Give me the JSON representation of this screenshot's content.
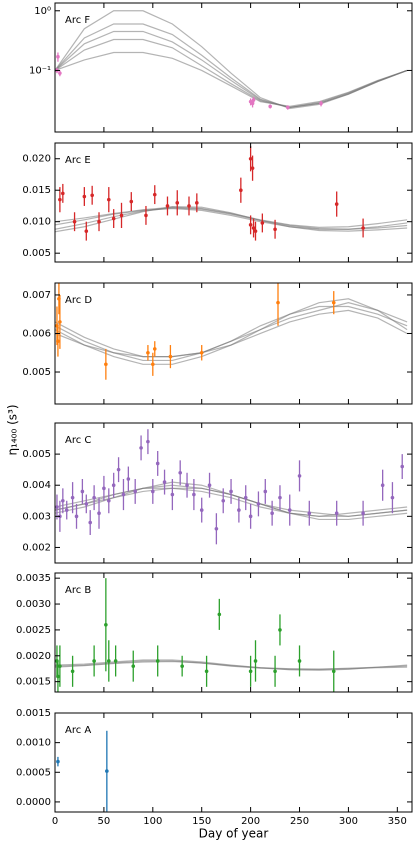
{
  "ylabel": "η₁₄₀₀ (s³)",
  "chart_data": [
    {
      "type": "line",
      "title": "Arc F",
      "yscale": "log",
      "ylim": [
        0.0093,
        1.35
      ],
      "yticks": [
        {
          "value": 1,
          "label": "10⁰"
        },
        {
          "value": 0.1,
          "label": "10⁻¹"
        }
      ],
      "x": [
        0,
        30,
        60,
        90,
        120,
        150,
        180,
        210,
        240,
        270,
        300,
        330,
        360
      ],
      "series": [
        {
          "color": "#777777",
          "values": [
            0.1,
            0.5,
            1.0,
            1.0,
            0.6,
            0.25,
            0.09,
            0.035,
            0.023,
            0.027,
            0.04,
            0.065,
            0.1
          ]
        },
        {
          "color": "#777777",
          "values": [
            0.1,
            0.35,
            0.6,
            0.6,
            0.4,
            0.18,
            0.075,
            0.033,
            0.024,
            0.028,
            0.04,
            0.065,
            0.1
          ]
        },
        {
          "color": "#777777",
          "values": [
            0.1,
            0.28,
            0.45,
            0.45,
            0.3,
            0.15,
            0.068,
            0.032,
            0.024,
            0.028,
            0.041,
            0.066,
            0.1
          ]
        },
        {
          "color": "#777777",
          "values": [
            0.1,
            0.22,
            0.33,
            0.33,
            0.24,
            0.12,
            0.06,
            0.031,
            0.024,
            0.029,
            0.042,
            0.067,
            0.1
          ]
        },
        {
          "color": "#777777",
          "values": [
            0.1,
            0.15,
            0.2,
            0.2,
            0.16,
            0.1,
            0.055,
            0.03,
            0.025,
            0.03,
            0.043,
            0.068,
            0.1
          ]
        }
      ],
      "points": {
        "color": "#e377c2",
        "x": [
          2,
          3,
          5,
          200,
          202,
          203,
          220,
          238,
          272
        ],
        "values": [
          0.1,
          0.17,
          0.09,
          0.03,
          0.028,
          0.032,
          0.025,
          0.024,
          0.028
        ],
        "errors": [
          0.01,
          0.03,
          0.01,
          0.004,
          0.004,
          0.004,
          0.002,
          0.002,
          0.003
        ]
      }
    },
    {
      "type": "line",
      "title": "Arc E",
      "ylim": [
        0.0036,
        0.0225
      ],
      "yticks": [
        0.005,
        {
          "value": 0.01,
          "label": "0.010"
        },
        0.015,
        {
          "value": 0.02,
          "label": "0.020"
        }
      ],
      "x": [
        0,
        30,
        60,
        90,
        120,
        150,
        180,
        210,
        240,
        270,
        300,
        330,
        360
      ],
      "series": [
        {
          "color": "#777777",
          "values": [
            0.0095,
            0.0103,
            0.0112,
            0.0118,
            0.0121,
            0.0118,
            0.011,
            0.01,
            0.0092,
            0.0088,
            0.0088,
            0.0092,
            0.0098
          ]
        },
        {
          "color": "#777777",
          "values": [
            0.0088,
            0.0097,
            0.0108,
            0.0117,
            0.0122,
            0.012,
            0.0112,
            0.0102,
            0.0094,
            0.0089,
            0.0088,
            0.009,
            0.0094
          ]
        },
        {
          "color": "#777777",
          "values": [
            0.01,
            0.0106,
            0.0113,
            0.0119,
            0.0123,
            0.0121,
            0.0113,
            0.0103,
            0.0095,
            0.0091,
            0.0092,
            0.0097,
            0.0103
          ]
        },
        {
          "color": "#777777",
          "values": [
            0.0084,
            0.0092,
            0.0104,
            0.0116,
            0.0124,
            0.0123,
            0.0114,
            0.0102,
            0.0092,
            0.0086,
            0.0085,
            0.0087,
            0.009
          ]
        }
      ],
      "points": {
        "color": "#d62728",
        "x": [
          5,
          8,
          20,
          30,
          32,
          38,
          45,
          55,
          60,
          68,
          78,
          93,
          102,
          115,
          125,
          137,
          145,
          190,
          200,
          202,
          200,
          203,
          205,
          212,
          225,
          288,
          315
        ],
        "values": [
          0.0135,
          0.0145,
          0.01,
          0.014,
          0.0085,
          0.0142,
          0.01,
          0.0135,
          0.0105,
          0.011,
          0.0132,
          0.011,
          0.0143,
          0.0125,
          0.013,
          0.0125,
          0.013,
          0.015,
          0.02,
          0.0185,
          0.0095,
          0.009,
          0.0085,
          0.0098,
          0.0088,
          0.0128,
          0.009
        ],
        "errors": [
          0.002,
          0.0015,
          0.0015,
          0.0015,
          0.0015,
          0.0015,
          0.0015,
          0.002,
          0.0015,
          0.002,
          0.0015,
          0.0015,
          0.0015,
          0.0015,
          0.002,
          0.0015,
          0.0015,
          0.002,
          0.002,
          0.002,
          0.0015,
          0.0015,
          0.0015,
          0.0015,
          0.0015,
          0.002,
          0.0015
        ]
      }
    },
    {
      "type": "line",
      "title": "Arc D",
      "ylim": [
        0.00417,
        0.00731
      ],
      "yticks": [
        0.005,
        0.006,
        0.007
      ],
      "x": [
        0,
        30,
        60,
        90,
        120,
        150,
        180,
        210,
        240,
        270,
        300,
        330,
        360
      ],
      "series": [
        {
          "color": "#777777",
          "values": [
            0.0062,
            0.0058,
            0.0055,
            0.0053,
            0.0053,
            0.0055,
            0.0058,
            0.0062,
            0.0065,
            0.0067,
            0.0067,
            0.0065,
            0.0062
          ]
        },
        {
          "color": "#777777",
          "values": [
            0.0063,
            0.0059,
            0.0056,
            0.0054,
            0.0054,
            0.0055,
            0.0058,
            0.0061,
            0.0064,
            0.0066,
            0.0068,
            0.0066,
            0.0063
          ]
        },
        {
          "color": "#777777",
          "values": [
            0.0061,
            0.0057,
            0.0054,
            0.0052,
            0.0052,
            0.0054,
            0.0057,
            0.0061,
            0.0065,
            0.0068,
            0.0069,
            0.0066,
            0.0061
          ]
        },
        {
          "color": "#777777",
          "values": [
            0.006,
            0.0057,
            0.0055,
            0.0054,
            0.0054,
            0.0055,
            0.0057,
            0.006,
            0.0063,
            0.0065,
            0.0066,
            0.0064,
            0.006
          ]
        }
      ],
      "points": {
        "color": "#ff7f0e",
        "x": [
          2,
          3,
          5,
          4,
          52,
          95,
          100,
          102,
          118,
          150,
          228,
          285
        ],
        "values": [
          0.0062,
          0.0058,
          0.0063,
          0.0069,
          0.0052,
          0.0055,
          0.0052,
          0.0056,
          0.0054,
          0.0055,
          0.0068,
          0.0068
        ],
        "errors": [
          0.0005,
          0.0004,
          0.0007,
          0.0004,
          0.0004,
          0.0002,
          0.0003,
          0.0002,
          0.0003,
          0.0002,
          0.0006,
          0.0003
        ]
      }
    },
    {
      "type": "line",
      "title": "Arc C",
      "ylim": [
        0.0015,
        0.006
      ],
      "yticks": [
        0.002,
        0.003,
        0.004,
        0.005
      ],
      "x": [
        0,
        30,
        60,
        90,
        120,
        150,
        180,
        210,
        240,
        270,
        300,
        330,
        360
      ],
      "series": [
        {
          "color": "#777777",
          "values": [
            0.0032,
            0.0034,
            0.0037,
            0.0039,
            0.004,
            0.0039,
            0.0037,
            0.0034,
            0.0031,
            0.003,
            0.003,
            0.0031,
            0.0032
          ]
        },
        {
          "color": "#777777",
          "values": [
            0.0033,
            0.0035,
            0.0037,
            0.0039,
            0.0039,
            0.0038,
            0.0036,
            0.0033,
            0.0031,
            0.003,
            0.0031,
            0.0032,
            0.0033
          ]
        },
        {
          "color": "#777777",
          "values": [
            0.0031,
            0.0033,
            0.0036,
            0.0039,
            0.0041,
            0.004,
            0.0037,
            0.0034,
            0.0031,
            0.0029,
            0.0029,
            0.003,
            0.0031
          ]
        },
        {
          "color": "#777777",
          "values": [
            0.0032,
            0.0034,
            0.0036,
            0.0038,
            0.0039,
            0.0039,
            0.0037,
            0.0034,
            0.0032,
            0.0031,
            0.003,
            0.0031,
            0.0032
          ]
        }
      ],
      "points": {
        "color": "#9467bd",
        "x": [
          2,
          5,
          8,
          12,
          18,
          22,
          28,
          32,
          36,
          40,
          45,
          50,
          55,
          60,
          65,
          70,
          75,
          82,
          88,
          95,
          100,
          105,
          112,
          120,
          128,
          135,
          142,
          150,
          158,
          165,
          172,
          180,
          188,
          195,
          200,
          208,
          215,
          222,
          230,
          240,
          250,
          260,
          288,
          315,
          335,
          345,
          355
        ],
        "values": [
          0.0033,
          0.003,
          0.0035,
          0.0032,
          0.0036,
          0.003,
          0.0038,
          0.0034,
          0.0028,
          0.0036,
          0.0031,
          0.0039,
          0.0035,
          0.004,
          0.0045,
          0.0037,
          0.0042,
          0.0038,
          0.0052,
          0.0054,
          0.0038,
          0.0047,
          0.0041,
          0.0037,
          0.0044,
          0.004,
          0.0037,
          0.0032,
          0.004,
          0.0026,
          0.0035,
          0.0038,
          0.0032,
          0.0036,
          0.003,
          0.0034,
          0.0038,
          0.0031,
          0.0036,
          0.0032,
          0.0043,
          0.0031,
          0.0031,
          0.0031,
          0.004,
          0.0036,
          0.0046
        ],
        "errors": [
          0.0004,
          0.0005,
          0.0004,
          0.0003,
          0.0005,
          0.0004,
          0.0004,
          0.0003,
          0.0004,
          0.0004,
          0.0005,
          0.0004,
          0.0004,
          0.0004,
          0.0004,
          0.0005,
          0.0004,
          0.0004,
          0.0004,
          0.0004,
          0.0004,
          0.0004,
          0.0004,
          0.0005,
          0.0004,
          0.0004,
          0.0005,
          0.0004,
          0.0004,
          0.0005,
          0.0004,
          0.0004,
          0.0004,
          0.0004,
          0.0004,
          0.0004,
          0.0004,
          0.0004,
          0.0004,
          0.0005,
          0.0005,
          0.0004,
          0.0004,
          0.0004,
          0.0005,
          0.0005,
          0.0004
        ]
      }
    },
    {
      "type": "line",
      "title": "Arc B",
      "ylim": [
        0.0013,
        0.0036
      ],
      "yticks": [
        0.0015,
        {
          "value": 0.002,
          "label": "0.0020"
        },
        0.0025,
        {
          "value": 0.003,
          "label": "0.0030"
        },
        0.0035
      ],
      "x": [
        0,
        30,
        60,
        90,
        120,
        150,
        180,
        210,
        240,
        270,
        300,
        330,
        360
      ],
      "series": [
        {
          "color": "#777777",
          "values": [
            0.0018,
            0.00182,
            0.00186,
            0.0019,
            0.0019,
            0.00186,
            0.0018,
            0.00176,
            0.00174,
            0.00174,
            0.00176,
            0.00178,
            0.0018
          ]
        },
        {
          "color": "#777777",
          "values": [
            0.00178,
            0.00181,
            0.00185,
            0.00188,
            0.00189,
            0.00186,
            0.00181,
            0.00177,
            0.00175,
            0.00174,
            0.00175,
            0.00177,
            0.00178
          ]
        },
        {
          "color": "#777777",
          "values": [
            0.00182,
            0.00184,
            0.00188,
            0.00192,
            0.00192,
            0.00188,
            0.00182,
            0.00177,
            0.00173,
            0.00172,
            0.00174,
            0.00178,
            0.00182
          ]
        }
      ],
      "points": {
        "color": "#2ca02c",
        "x": [
          2,
          3,
          5,
          18,
          40,
          52,
          55,
          62,
          80,
          105,
          130,
          155,
          168,
          200,
          205,
          225,
          230,
          250,
          285
        ],
        "values": [
          0.0019,
          0.0016,
          0.0018,
          0.0017,
          0.0019,
          0.0026,
          0.0019,
          0.0019,
          0.0018,
          0.0019,
          0.0018,
          0.0017,
          0.0028,
          0.0017,
          0.0019,
          0.0017,
          0.0025,
          0.0019,
          0.0017
        ],
        "errors": [
          0.0003,
          0.0003,
          0.0004,
          0.0003,
          0.0003,
          0.0009,
          0.0004,
          0.0003,
          0.0003,
          0.0003,
          0.0002,
          0.0003,
          0.0003,
          0.0003,
          0.0004,
          0.0003,
          0.0003,
          0.0003,
          0.0004
        ]
      }
    },
    {
      "type": "line",
      "title": "Arc A",
      "ylim": [
        -0.00017,
        0.0015
      ],
      "yticks": [
        {
          "value": 0,
          "label": "0.0000"
        },
        0.0005,
        {
          "value": 0.001,
          "label": "0.0010"
        },
        0.0015
      ],
      "xlabel": "Day of year",
      "xlim": [
        0,
        365
      ],
      "xticks": [
        0,
        50,
        100,
        150,
        200,
        250,
        300,
        350
      ],
      "series": [],
      "points": {
        "color": "#1f77b4",
        "x": [
          3,
          53
        ],
        "values": [
          0.00068,
          0.00052
        ],
        "errors": [
          8e-05,
          0.00068
        ]
      }
    }
  ]
}
